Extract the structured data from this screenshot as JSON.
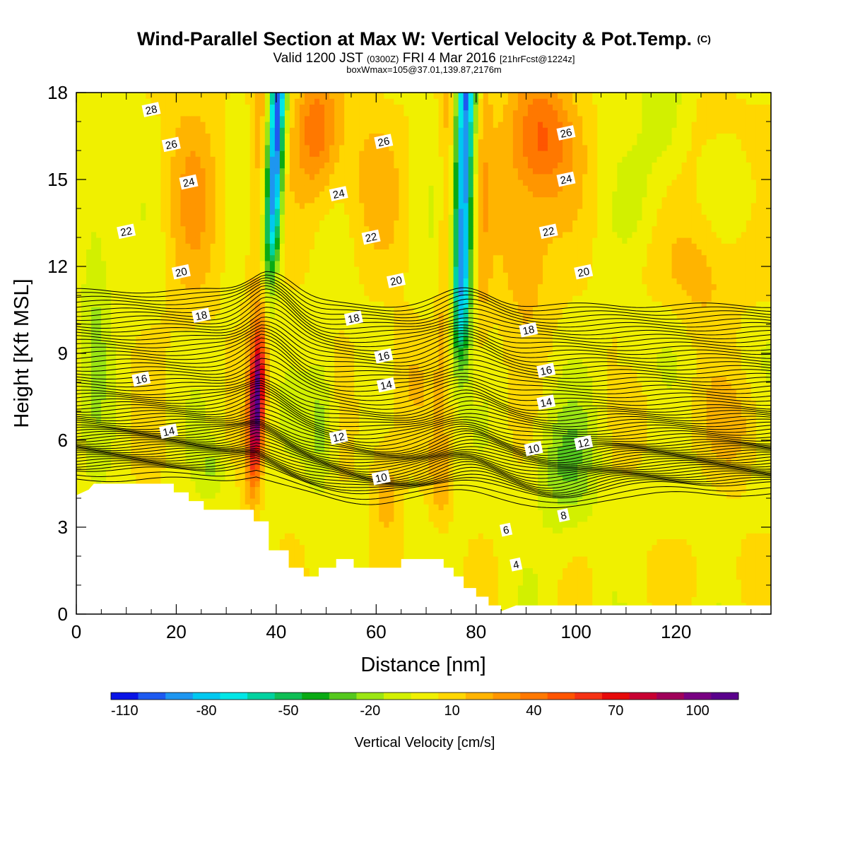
{
  "header": {
    "title": "Wind-Parallel Section at Max W: Vertical Velocity & Pot.Temp.",
    "title_mark": "(C)",
    "valid_pre": "Valid 1200 JST",
    "valid_utc": "(0300Z)",
    "valid_date": "FRI 4 Mar 2016",
    "forecast": "[21hrFcst@1224z]",
    "boxinfo": "boxWmax=105@37.01,139.87,2176m"
  },
  "chart_data": {
    "type": "heatmap",
    "xlabel": "Distance [nm]",
    "ylabel": "Height [Kft MSL]",
    "xlim": [
      0,
      139
    ],
    "ylim": [
      0,
      18
    ],
    "x_ticks": [
      "0",
      "20",
      "40",
      "60",
      "80",
      "100",
      "120"
    ],
    "y_ticks": [
      "0",
      "3",
      "6",
      "9",
      "12",
      "15",
      "18"
    ],
    "colorbar": {
      "title": "Vertical Velocity [cm/s]",
      "labels": [
        "-110",
        "-80",
        "-50",
        "-20",
        "10",
        "40",
        "70",
        "100"
      ],
      "label_values": [
        -110,
        -80,
        -50,
        -20,
        10,
        40,
        70,
        100
      ],
      "min": -115,
      "step": 10,
      "colors": [
        "#0a14e6",
        "#1e5af0",
        "#1e96f0",
        "#00c8f0",
        "#00e6e6",
        "#00d2a0",
        "#0fbe55",
        "#0aaa14",
        "#55c81e",
        "#9be614",
        "#d2f000",
        "#f0f000",
        "#ffd700",
        "#ffb400",
        "#ff9600",
        "#ff7800",
        "#ff5500",
        "#f53214",
        "#e60a0a",
        "#c80032",
        "#a0005a",
        "#780082",
        "#5a008c"
      ]
    },
    "terrain_kft": [
      [
        0,
        4.1
      ],
      [
        2.5,
        4.3
      ],
      [
        3.5,
        4.5
      ],
      [
        19.5,
        4.5
      ],
      [
        19.5,
        4.2
      ],
      [
        22.5,
        4.2
      ],
      [
        22.5,
        3.9
      ],
      [
        25.5,
        3.9
      ],
      [
        25.5,
        3.6
      ],
      [
        35.5,
        3.6
      ],
      [
        35.5,
        3.2
      ],
      [
        38.5,
        3.2
      ],
      [
        38.5,
        2.2
      ],
      [
        42.5,
        2.2
      ],
      [
        42.5,
        1.6
      ],
      [
        45.5,
        1.6
      ],
      [
        45.5,
        1.3
      ],
      [
        48.5,
        1.3
      ],
      [
        48.5,
        1.6
      ],
      [
        52,
        1.6
      ],
      [
        52,
        1.9
      ],
      [
        55.5,
        1.9
      ],
      [
        55.5,
        1.6
      ],
      [
        65,
        1.6
      ],
      [
        65,
        1.9
      ],
      [
        73.5,
        1.9
      ],
      [
        73.5,
        1.6
      ],
      [
        75.5,
        1.6
      ],
      [
        75.5,
        1.3
      ],
      [
        77.5,
        1.3
      ],
      [
        77.5,
        0.9
      ],
      [
        80,
        0.9
      ],
      [
        80,
        0.6
      ],
      [
        82.5,
        0.6
      ],
      [
        82.5,
        0.3
      ],
      [
        85,
        0.3
      ],
      [
        85,
        0.1
      ],
      [
        88,
        0.3
      ],
      [
        139,
        0.3
      ]
    ],
    "vertical_velocity_features_cm_s": [
      {
        "x": 38.5,
        "y_kft": 15.5,
        "value": -105
      },
      {
        "x": 37.5,
        "y_kft": 11.5,
        "value": -55
      },
      {
        "x": 78,
        "y_kft": 15.5,
        "value": -100
      },
      {
        "x": 77,
        "y_kft": 10.5,
        "value": -40
      },
      {
        "x": 36,
        "y_kft": 6.7,
        "value": 105
      },
      {
        "x": 35,
        "y_kft": 8.8,
        "value": 60
      },
      {
        "x": 48,
        "y_kft": 16.5,
        "value": 45
      },
      {
        "x": 93,
        "y_kft": 16.8,
        "value": 45
      },
      {
        "x": 98,
        "y_kft": 5.2,
        "value": -15
      },
      {
        "x": 49,
        "y_kft": 6.5,
        "value": -20
      }
    ],
    "theta_contours_C": [
      4,
      6,
      8,
      10,
      12,
      14,
      16,
      18,
      20,
      22,
      24,
      26,
      28
    ],
    "contour_labels": [
      {
        "text": "28",
        "x": 15,
        "y_kft": 17.4
      },
      {
        "text": "26",
        "x": 19,
        "y_kft": 16.2
      },
      {
        "text": "24",
        "x": 22.5,
        "y_kft": 14.9
      },
      {
        "text": "22",
        "x": 10,
        "y_kft": 13.2
      },
      {
        "text": "20",
        "x": 21,
        "y_kft": 11.8
      },
      {
        "text": "18",
        "x": 25,
        "y_kft": 10.3
      },
      {
        "text": "16",
        "x": 13,
        "y_kft": 8.1
      },
      {
        "text": "14",
        "x": 18.5,
        "y_kft": 6.3
      },
      {
        "text": "26",
        "x": 61.5,
        "y_kft": 16.3
      },
      {
        "text": "24",
        "x": 52.5,
        "y_kft": 14.5
      },
      {
        "text": "22",
        "x": 59,
        "y_kft": 13.0
      },
      {
        "text": "20",
        "x": 64,
        "y_kft": 11.5
      },
      {
        "text": "18",
        "x": 55.5,
        "y_kft": 10.2
      },
      {
        "text": "16",
        "x": 61.5,
        "y_kft": 8.9
      },
      {
        "text": "14",
        "x": 62,
        "y_kft": 7.9
      },
      {
        "text": "12",
        "x": 52.5,
        "y_kft": 6.1
      },
      {
        "text": "10",
        "x": 61,
        "y_kft": 4.7
      },
      {
        "text": "26",
        "x": 98,
        "y_kft": 16.6
      },
      {
        "text": "24",
        "x": 98,
        "y_kft": 15.0
      },
      {
        "text": "22",
        "x": 94.5,
        "y_kft": 13.2
      },
      {
        "text": "20",
        "x": 101.5,
        "y_kft": 11.8
      },
      {
        "text": "18",
        "x": 90.5,
        "y_kft": 9.8
      },
      {
        "text": "16",
        "x": 94,
        "y_kft": 8.4
      },
      {
        "text": "14",
        "x": 94,
        "y_kft": 7.3
      },
      {
        "text": "12",
        "x": 101.5,
        "y_kft": 5.9
      },
      {
        "text": "10",
        "x": 91.5,
        "y_kft": 5.7
      },
      {
        "text": "8",
        "x": 97.5,
        "y_kft": 3.4
      },
      {
        "text": "6",
        "x": 86,
        "y_kft": 2.9
      },
      {
        "text": "4",
        "x": 88,
        "y_kft": 1.7
      }
    ]
  }
}
